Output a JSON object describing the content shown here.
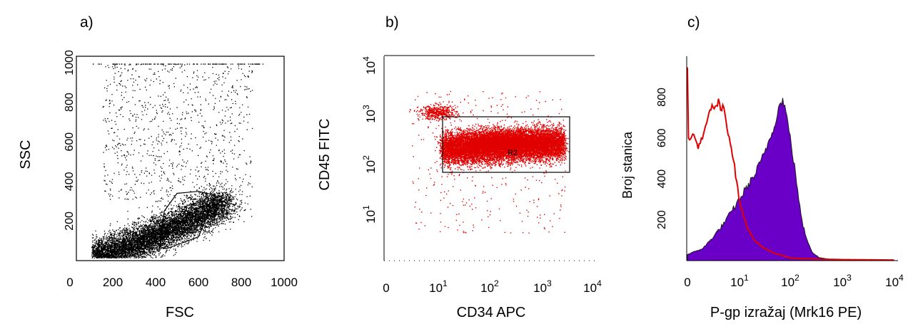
{
  "panels": [
    {
      "letter": "a)"
    },
    {
      "letter": "b)"
    },
    {
      "letter": "c)"
    }
  ],
  "chart_data": [
    {
      "type": "scatter",
      "panel": "a)",
      "xlabel": "FSC",
      "ylabel": "SSC",
      "xlim": [
        0,
        1000
      ],
      "ylim": [
        0,
        1000
      ],
      "x_ticks": [
        "0",
        "200",
        "400",
        "600",
        "800",
        "1000"
      ],
      "y_ticks": [
        "200",
        "400",
        "600",
        "800",
        "1000"
      ],
      "point_color": "#000000",
      "population": {
        "center": [
          480,
          190
        ],
        "spread": [
          150,
          90
        ],
        "note_dense_cluster": true
      },
      "gate": {
        "shape": "polygon",
        "vertices": [
          [
            420,
            70
          ],
          [
            440,
            250
          ],
          [
            500,
            340
          ],
          [
            600,
            350
          ],
          [
            680,
            330
          ],
          [
            600,
            120
          ],
          [
            450,
            60
          ]
        ]
      }
    },
    {
      "type": "scatter",
      "panel": "b)",
      "xlabel": "CD34 APC",
      "ylabel": "CD45 FITC",
      "xscale": "log",
      "yscale": "log",
      "xlim": [
        1,
        10000
      ],
      "ylim": [
        1,
        10000
      ],
      "x_ticks": [
        "0",
        "10^1",
        "10^2",
        "10^3",
        "10^4"
      ],
      "y_ticks": [
        "10^1",
        "10^2",
        "10^3",
        "10^4"
      ],
      "point_color": "#e00000",
      "gate": {
        "label": "R2",
        "x_range": [
          12,
          3500
        ],
        "y_range": [
          60,
          800
        ]
      }
    },
    {
      "type": "area",
      "panel": "c)",
      "xlabel": "P-gp izražaj (Mrk16 PE)",
      "ylabel": "Broj stanica",
      "xscale": "log",
      "xlim": [
        1,
        10000
      ],
      "ylim": [
        0,
        1000
      ],
      "x_ticks": [
        "0",
        "10^1",
        "10^2",
        "10^3",
        "10^4"
      ],
      "y_ticks": [
        "200",
        "400",
        "600",
        "800"
      ],
      "series": [
        {
          "style": "filled",
          "color": "#6a00c8",
          "x": [
            1,
            2,
            3,
            5,
            8,
            10,
            15,
            20,
            30,
            45,
            60,
            70,
            80,
            100,
            130,
            160,
            200,
            260,
            350,
            600,
            1000,
            10000
          ],
          "y": [
            30,
            60,
            110,
            180,
            260,
            300,
            370,
            420,
            520,
            640,
            760,
            790,
            730,
            580,
            380,
            200,
            110,
            40,
            15,
            5,
            2,
            0
          ]
        },
        {
          "style": "line",
          "color": "#e00000",
          "x": [
            1,
            1.05,
            1.1,
            1.3,
            1.6,
            2,
            2.5,
            3,
            3.5,
            4,
            4.5,
            5,
            5.5,
            6,
            7,
            8,
            9,
            10,
            12,
            15,
            20,
            30,
            50,
            80,
            100,
            300,
            1000,
            10000
          ],
          "y": [
            960,
            600,
            580,
            620,
            560,
            600,
            700,
            760,
            740,
            780,
            730,
            760,
            690,
            640,
            560,
            470,
            380,
            300,
            220,
            150,
            100,
            60,
            35,
            20,
            12,
            8,
            5,
            3
          ]
        }
      ]
    }
  ]
}
